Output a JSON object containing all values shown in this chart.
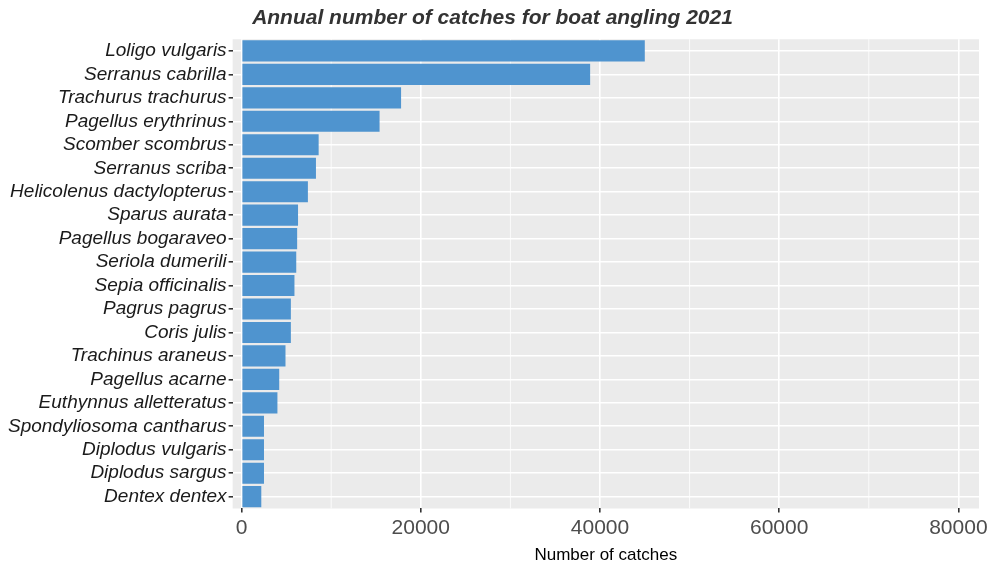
{
  "chart_data": {
    "type": "bar",
    "orientation": "horizontal",
    "title": "Annual number of catches for boat angling 2021",
    "xlabel": "Number of catches",
    "categories": [
      "Loligo vulgaris",
      "Serranus cabrilla",
      "Trachurus trachurus",
      "Pagellus erythrinus",
      "Scomber scombrus",
      "Serranus scriba",
      "Helicolenus dactylopterus",
      "Sparus aurata",
      "Pagellus bogaraveo",
      "Seriola dumerili",
      "Sepia officinalis",
      "Pagrus pagrus",
      "Coris julis",
      "Trachinus araneus",
      "Pagellus acarne",
      "Euthynnus alletteratus",
      "Spondyliosoma cantharus",
      "Diplodus vulgaris",
      "Diplodus sargus",
      "Dentex dentex"
    ],
    "values": [
      45000,
      38900,
      17800,
      15400,
      8600,
      8300,
      7400,
      6300,
      6200,
      6100,
      5900,
      5500,
      5500,
      4900,
      4200,
      4000,
      2500,
      2500,
      2500,
      2200
    ],
    "color": "#4f94cf",
    "xlim": [
      -1000,
      82300
    ],
    "xticks": [
      0,
      20000,
      40000,
      60000,
      80000
    ],
    "grid": true,
    "legend": false
  }
}
